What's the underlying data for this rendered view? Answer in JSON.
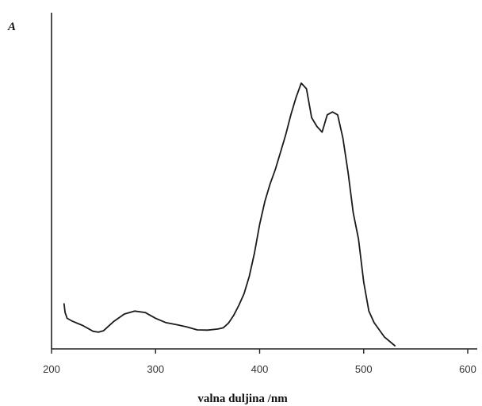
{
  "chart_data": {
    "type": "line",
    "title": "",
    "xlabel": "valna duljina /nm",
    "ylabel": "A",
    "xlim": [
      200,
      600
    ],
    "ylim": [
      0,
      1
    ],
    "grid": false,
    "x_ticks": [
      "200",
      "300",
      "400",
      "500",
      "600"
    ],
    "y_ticks": [],
    "series": [
      {
        "x": [
          212,
          213,
          215,
          220,
          230,
          240,
          245,
          250,
          260,
          270,
          280,
          290,
          300,
          310,
          320,
          330,
          340,
          350,
          360,
          365,
          370,
          375,
          380,
          385,
          390,
          395,
          400,
          405,
          410,
          415,
          420,
          425,
          430,
          435,
          440,
          445,
          450,
          455,
          460,
          465,
          470,
          475,
          480,
          485,
          490,
          495,
          500,
          505,
          510,
          520,
          530
        ],
        "y": [
          0.145,
          0.115,
          0.095,
          0.085,
          0.07,
          0.05,
          0.047,
          0.052,
          0.085,
          0.11,
          0.12,
          0.115,
          0.095,
          0.08,
          0.073,
          0.065,
          0.055,
          0.054,
          0.058,
          0.062,
          0.078,
          0.105,
          0.14,
          0.18,
          0.24,
          0.32,
          0.42,
          0.5,
          0.56,
          0.61,
          0.67,
          0.73,
          0.8,
          0.86,
          0.91,
          0.89,
          0.79,
          0.76,
          0.74,
          0.8,
          0.81,
          0.8,
          0.72,
          0.6,
          0.46,
          0.37,
          0.22,
          0.12,
          0.08,
          0.03,
          0.0
        ]
      }
    ]
  }
}
